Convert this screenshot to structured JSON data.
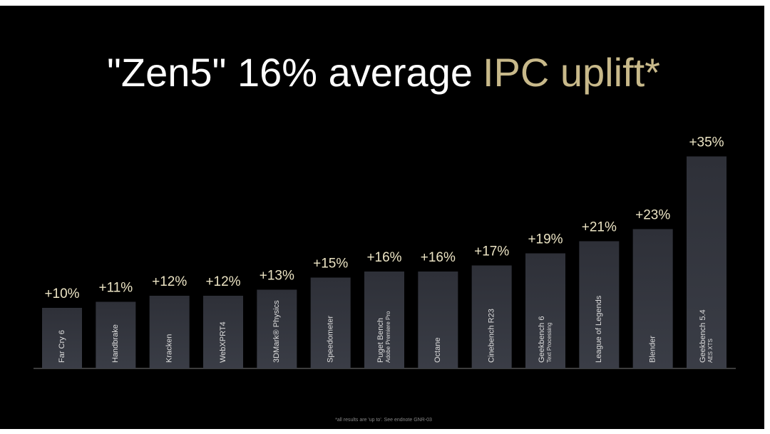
{
  "chart_data": {
    "type": "bar",
    "title": "\"Zen5\" 16% average",
    "title_highlight": "IPC uplift*",
    "footnote": "*all results are 'up to'. See endnote GNR-03",
    "categories": [
      [
        "Far Cry 6"
      ],
      [
        "Handbrake"
      ],
      [
        "Kracken"
      ],
      [
        "WebXPRT4"
      ],
      [
        "3DMark® Physics"
      ],
      [
        "Speedometer"
      ],
      [
        "Puget Bench",
        "Adobe Premiere Pro"
      ],
      [
        "Octane"
      ],
      [
        "Cinebench R23"
      ],
      [
        "Geekbench 6",
        "Text Processing"
      ],
      [
        "League of Legends"
      ],
      [
        "Blender"
      ],
      [
        "Geekbench 5.4",
        "AES XTS"
      ]
    ],
    "values": [
      10,
      11,
      12,
      12,
      13,
      15,
      16,
      16,
      17,
      19,
      21,
      23,
      35
    ],
    "value_labels": [
      "+10%",
      "+11%",
      "+12%",
      "+12%",
      "+13%",
      "+15%",
      "+16%",
      "+16%",
      "+17%",
      "+19%",
      "+21%",
      "+23%",
      "+35%"
    ],
    "color": "#2e3038",
    "label_color": "#ece4c4",
    "highlight_color": "#c8b98a",
    "ylim": [
      0,
      40
    ]
  }
}
